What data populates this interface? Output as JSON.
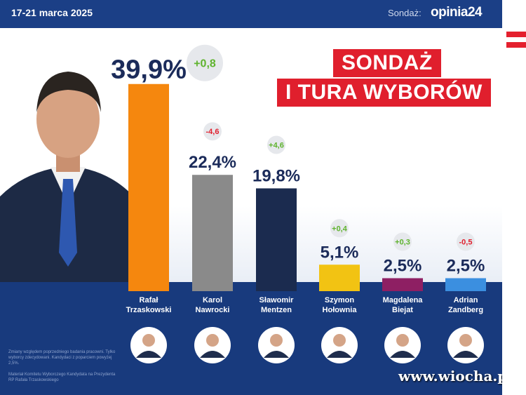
{
  "header": {
    "date": "17-21 marca 2025",
    "sondaz_label": "Sondaż:",
    "brand": "opinia24"
  },
  "title": {
    "line1": "SONDAŻ",
    "line2": "I TURA WYBORÓW"
  },
  "notes": {
    "methodology": "Zmiany względem poprzedniego badania pracowni. Tylko wyborcy zdecydowani. Kandydaci z poparciem powyżej 2,5%.",
    "sponsor": "Materiał Komitetu Wyborczego Kandydata na Prezydenta RP Rafała Trzaskowskiego"
  },
  "watermark": "www.wiocha.pl",
  "colors": {
    "navy": "#1b3f86",
    "red": "#e01f2d",
    "positive": "#5fb32e",
    "negative": "#e01f2d"
  },
  "chart_data": {
    "type": "bar",
    "categories": [
      "Rafał Trzaskowski",
      "Karol Nawrocki",
      "Sławomir Mentzen",
      "Szymon Hołownia",
      "Magdalena Biejat",
      "Adrian Zandberg"
    ],
    "name_lines": [
      [
        "Rafał",
        "Trzaskowski"
      ],
      [
        "Karol",
        "Nawrocki"
      ],
      [
        "Sławomir",
        "Mentzen"
      ],
      [
        "Szymon",
        "Hołownia"
      ],
      [
        "Magdalena",
        "Biejat"
      ],
      [
        "Adrian",
        "Zandberg"
      ]
    ],
    "values": [
      39.9,
      22.4,
      19.8,
      5.1,
      2.5,
      2.5
    ],
    "value_labels": [
      "39,9%",
      "22,4%",
      "19,8%",
      "5,1%",
      "2,5%",
      "2,5%"
    ],
    "changes": [
      "+0,8",
      "-4,6",
      "+4,6",
      "+0,4",
      "+0,3",
      "-0,5"
    ],
    "change_signs": [
      "up",
      "down",
      "up",
      "up",
      "up",
      "down"
    ],
    "bar_colors": [
      "#f5870e",
      "#8a8a8a",
      "#1b2b4f",
      "#f2c313",
      "#8e1f63",
      "#3b8fe0"
    ],
    "unit": "%"
  }
}
